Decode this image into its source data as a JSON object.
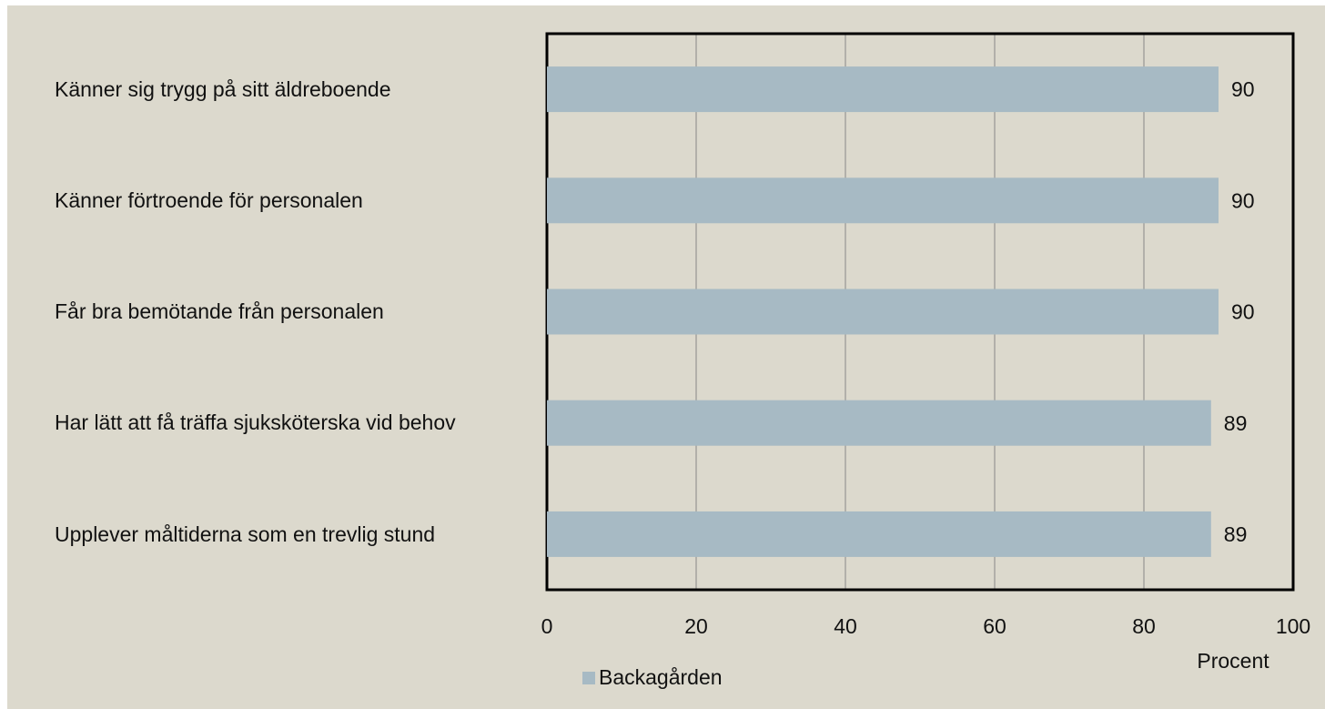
{
  "chart_data": {
    "type": "bar",
    "orientation": "horizontal",
    "categories": [
      "Känner sig trygg på sitt äldreboende",
      "Känner förtroende för personalen",
      "Får bra bemötande från personalen",
      "Har lätt att få träffa sjuksköterska vid behov",
      "Upplever måltiderna som en trevlig stund"
    ],
    "series": [
      {
        "name": "Backagården",
        "color": "#a7bac4",
        "values": [
          90,
          90,
          90,
          89,
          89
        ]
      }
    ],
    "x_label": "Procent",
    "xlim": [
      0,
      100
    ],
    "xticks": [
      0,
      20,
      40,
      60,
      80,
      100
    ],
    "grid": true,
    "legend": "bottom"
  }
}
